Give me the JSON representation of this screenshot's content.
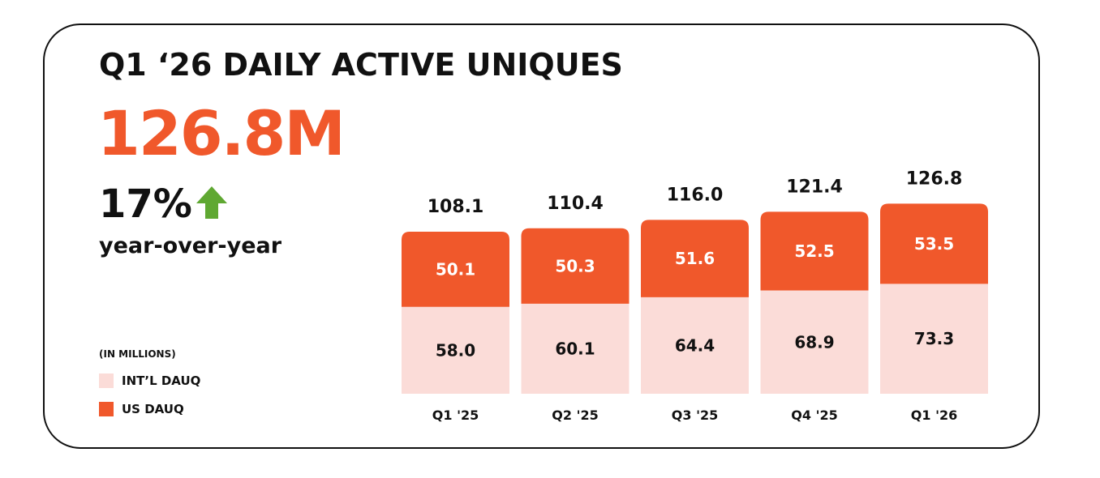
{
  "title": "Q1 ‘26 DAILY ACTIVE UNIQUES",
  "headline_value": "126.8M",
  "yoy_growth": "17%",
  "yoy_label": "year-over-year",
  "units_note": "(IN MILLIONS)",
  "colors": {
    "accent": "#f0582b",
    "intl": "#fbdcd8",
    "us": "#f0582b",
    "arrow": "#5fa832"
  },
  "legend": [
    {
      "label": "INT’L DAUQ",
      "color": "#fbdcd8"
    },
    {
      "label": "US DAUQ",
      "color": "#f0582b"
    }
  ],
  "chart_data": {
    "type": "bar",
    "stacked": true,
    "categories": [
      "Q1 '25",
      "Q2 '25",
      "Q3 '25",
      "Q4 '25",
      "Q1 '26"
    ],
    "series": [
      {
        "name": "INT’L DAUQ",
        "values": [
          58.0,
          60.1,
          64.4,
          68.9,
          73.3
        ]
      },
      {
        "name": "US DAUQ",
        "values": [
          50.1,
          50.3,
          51.6,
          52.5,
          53.5
        ]
      }
    ],
    "totals": [
      108.1,
      110.4,
      116.0,
      121.4,
      126.8
    ],
    "title": "",
    "xlabel": "",
    "ylabel": "",
    "legend_position": "bottom-left",
    "grid": false
  }
}
